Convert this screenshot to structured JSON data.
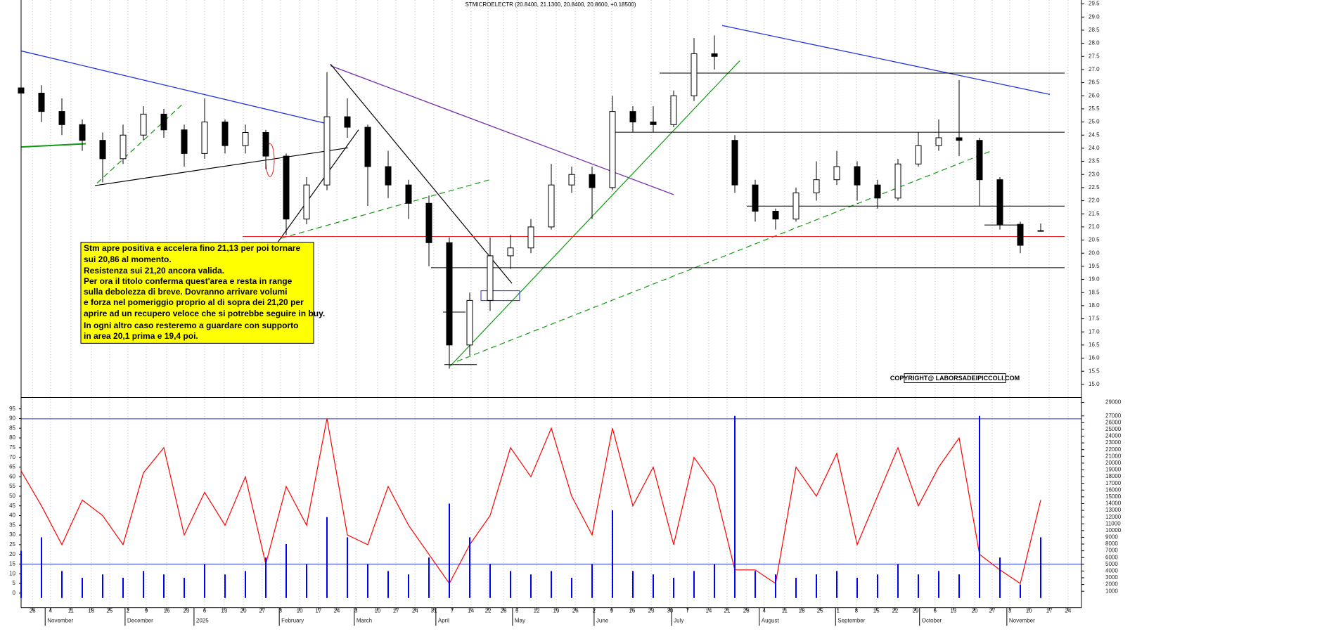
{
  "chart_data": [
    {
      "type": "candlestick",
      "title": "STMICROELECTR (20.8400, 21.1300, 20.8400, 20.8600, +0.18500)",
      "x": [
        0,
        5,
        10,
        15,
        20,
        25,
        30,
        35,
        40,
        45,
        50,
        55,
        60,
        65,
        70,
        75,
        80,
        85,
        90,
        95,
        100,
        105,
        110,
        115,
        120,
        125,
        130,
        135,
        140,
        145,
        150,
        155,
        160,
        165,
        170,
        175,
        180,
        185,
        190,
        195,
        200,
        205,
        210,
        215,
        220,
        225,
        230,
        235,
        240,
        245,
        250
      ],
      "open": [
        26.3,
        26.1,
        25.4,
        24.9,
        24.3,
        23.6,
        24.5,
        25.3,
        24.7,
        23.8,
        25.0,
        24.1,
        24.6,
        23.7,
        21.3,
        22.6,
        25.2,
        24.8,
        23.3,
        22.6,
        21.9,
        20.4,
        16.5,
        18.2,
        19.9,
        20.2,
        21.0,
        22.6,
        23.0,
        22.5,
        25.4,
        25.0,
        24.9,
        26.0,
        27.6,
        24.3,
        22.6,
        21.6,
        21.3,
        22.3,
        22.8,
        23.3,
        22.6,
        22.1,
        23.4,
        24.1,
        24.4,
        24.3,
        22.8,
        21.1,
        20.84
      ],
      "high": [
        26.7,
        26.4,
        25.9,
        25.1,
        24.6,
        24.9,
        25.6,
        25.5,
        24.9,
        25.9,
        25.1,
        24.9,
        24.7,
        23.8,
        22.9,
        26.9,
        25.9,
        24.9,
        23.9,
        22.8,
        22.2,
        20.6,
        18.5,
        20.6,
        20.7,
        21.3,
        23.4,
        23.3,
        23.3,
        26.0,
        25.6,
        25.6,
        26.2,
        28.2,
        28.3,
        24.5,
        22.8,
        21.7,
        22.5,
        23.5,
        23.9,
        23.5,
        22.8,
        23.6,
        24.6,
        25.1,
        26.6,
        24.4,
        22.9,
        21.2,
        21.13
      ],
      "low": [
        25.9,
        25.0,
        24.5,
        23.9,
        22.7,
        23.4,
        24.3,
        24.4,
        23.3,
        23.6,
        23.8,
        23.8,
        23.2,
        20.7,
        21.1,
        22.4,
        24.4,
        21.8,
        22.1,
        21.3,
        19.5,
        15.6,
        16.1,
        17.8,
        19.4,
        20.0,
        20.9,
        22.3,
        21.3,
        22.4,
        24.6,
        24.6,
        24.8,
        25.8,
        27.0,
        22.3,
        21.2,
        20.9,
        21.2,
        22.0,
        22.6,
        22.0,
        21.7,
        22.0,
        23.3,
        23.9,
        23.7,
        21.8,
        20.9,
        20.0,
        20.84
      ],
      "close": [
        26.1,
        25.4,
        24.9,
        24.3,
        23.6,
        24.5,
        25.3,
        24.7,
        23.8,
        25.0,
        24.1,
        24.6,
        23.7,
        21.3,
        22.6,
        25.2,
        24.8,
        23.3,
        22.6,
        21.9,
        20.4,
        16.5,
        18.2,
        19.9,
        20.2,
        21.0,
        22.6,
        23.0,
        22.5,
        25.4,
        25.0,
        24.9,
        26.0,
        27.6,
        27.5,
        22.6,
        21.6,
        21.3,
        22.3,
        22.8,
        23.3,
        22.6,
        22.1,
        23.4,
        24.1,
        24.4,
        24.3,
        22.8,
        21.1,
        20.3,
        20.86
      ],
      "xlim": [
        0,
        260
      ],
      "ylim": [
        14.5,
        29.65
      ],
      "yticks": [
        {
          "value": 15,
          "label": "15.0"
        },
        {
          "value": 15.5,
          "label": "15.5"
        },
        {
          "value": 16,
          "label": "16.0"
        },
        {
          "value": 16.5,
          "label": "16.5"
        },
        {
          "value": 17,
          "label": "17.0"
        },
        {
          "value": 17.5,
          "label": "17.5"
        },
        {
          "value": 18,
          "label": "18.0"
        },
        {
          "value": 18.5,
          "label": "18.5"
        },
        {
          "value": 19,
          "label": "19.0"
        },
        {
          "value": 19.5,
          "label": "19.5"
        },
        {
          "value": 20,
          "label": "20.0"
        },
        {
          "value": 20.5,
          "label": "20.5"
        },
        {
          "value": 21,
          "label": "21.0"
        },
        {
          "value": 21.5,
          "label": "21.5"
        },
        {
          "value": 22,
          "label": "22.0"
        },
        {
          "value": 22.5,
          "label": "22.5"
        },
        {
          "value": 23,
          "label": "23.0"
        },
        {
          "value": 23.5,
          "label": "23.5"
        },
        {
          "value": 24,
          "label": "24.0"
        },
        {
          "value": 24.5,
          "label": "24.5"
        },
        {
          "value": 25,
          "label": "25.0"
        },
        {
          "value": 25.5,
          "label": "25.5"
        },
        {
          "value": 26,
          "label": "26.0"
        },
        {
          "value": 26.5,
          "label": "26.5"
        },
        {
          "value": 27,
          "label": "27.0"
        },
        {
          "value": 27.5,
          "label": "27.5"
        },
        {
          "value": 28,
          "label": "28.0"
        },
        {
          "value": 28.5,
          "label": "28.5"
        },
        {
          "value": 29,
          "label": "29.0"
        },
        {
          "value": 29.5,
          "label": "29.5"
        }
      ],
      "annotation": [
        "Stm apre positiva e accelera fino 21,13 per poi tornare",
        "sui 20,86 al momento.",
        "Resistenza sui 21,20 ancora valida.",
        "Per ora il titolo conferma quest'area e resta in range",
        "sulla debolezza di breve. Dovranno arrivare volumi",
        "e forza nel pomeriggio proprio al di sopra dei 21,20 per",
        "aprire ad un recupero veloce che si potrebbe seguire in buy.",
        "In ogni altro caso resteremo a guardare con supporto",
        "in area 20,1 prima e 19,4 poi."
      ],
      "copyright": "COPYRIGHT@ LABORSADEIPICCOLI.COM"
    },
    {
      "type": "line",
      "x": [
        0,
        5,
        10,
        15,
        20,
        25,
        30,
        35,
        40,
        45,
        50,
        55,
        60,
        65,
        70,
        75,
        80,
        85,
        90,
        95,
        100,
        105,
        110,
        115,
        120,
        125,
        130,
        135,
        140,
        145,
        150,
        155,
        160,
        165,
        170,
        175,
        180,
        185,
        190,
        195,
        200,
        205,
        210,
        215,
        220,
        225,
        230,
        235,
        240,
        245,
        250
      ],
      "series": [
        {
          "color": "#ff0000",
          "values": [
            63,
            45,
            25,
            48,
            40,
            25,
            62,
            75,
            30,
            52,
            35,
            60,
            15,
            55,
            35,
            90,
            30,
            25,
            55,
            35,
            20,
            5,
            25,
            40,
            75,
            60,
            85,
            50,
            30,
            85,
            45,
            65,
            25,
            70,
            55,
            12,
            12,
            5,
            65,
            50,
            72,
            25,
            50,
            75,
            45,
            65,
            80,
            20,
            12,
            5,
            48
          ]
        },
        {
          "color": "#0000ff",
          "type": "bar",
          "axis": "y2",
          "values": [
            7000,
            9000,
            4000,
            3000,
            3500,
            3000,
            4000,
            3500,
            3000,
            5000,
            3500,
            4000,
            6000,
            8000,
            5000,
            12000,
            9000,
            5000,
            4000,
            3500,
            6000,
            14000,
            9000,
            5000,
            4000,
            3500,
            4000,
            3000,
            5000,
            13000,
            4000,
            3500,
            3000,
            4000,
            5000,
            27000,
            4000,
            3500,
            3000,
            3500,
            4000,
            3000,
            3500,
            5000,
            3500,
            4000,
            3500,
            27000,
            6000,
            2000,
            9000
          ]
        }
      ],
      "xlim": [
        0,
        260
      ],
      "ylim": [
        -7.5,
        100
      ],
      "yticks": [
        0,
        5,
        10,
        15,
        20,
        25,
        30,
        35,
        40,
        45,
        50,
        55,
        60,
        65,
        70,
        75,
        80,
        85,
        90,
        95
      ],
      "y2lim": [
        -1440,
        29490
      ],
      "y2ticks": [
        1000,
        2000,
        3000,
        4000,
        5000,
        6000,
        7000,
        8000,
        9000,
        10000,
        11000,
        12000,
        13000,
        14000,
        15000,
        16000,
        17000,
        18000,
        19000,
        20000,
        21000,
        22000,
        23000,
        24000,
        25000,
        26000,
        27000,
        29000
      ],
      "grid": true,
      "xticks": [
        {
          "value": 2.8,
          "label": "28"
        },
        {
          "value": 7.2,
          "label": "4"
        },
        {
          "value": 12.2,
          "label": "11"
        },
        {
          "value": 17.2,
          "label": "18"
        },
        {
          "value": 21.7,
          "label": "25"
        },
        {
          "value": 26.2,
          "label": "2"
        },
        {
          "value": 30.7,
          "label": "9"
        },
        {
          "value": 35.7,
          "label": "16"
        },
        {
          "value": 40.5,
          "label": "23"
        },
        {
          "value": 45,
          "label": "6"
        },
        {
          "value": 49.8,
          "label": "13"
        },
        {
          "value": 54.5,
          "label": "20"
        },
        {
          "value": 59.1,
          "label": "27"
        },
        {
          "value": 63.6,
          "label": "3"
        },
        {
          "value": 68.3,
          "label": "10"
        },
        {
          "value": 72.9,
          "label": "17"
        },
        {
          "value": 77.4,
          "label": "24"
        },
        {
          "value": 82.1,
          "label": "3"
        },
        {
          "value": 87.4,
          "label": "10"
        },
        {
          "value": 91.9,
          "label": "17"
        },
        {
          "value": 96.6,
          "label": "24"
        },
        {
          "value": 101.2,
          "label": "31"
        },
        {
          "value": 105.7,
          "label": "7"
        },
        {
          "value": 110.3,
          "label": "14"
        },
        {
          "value": 114.5,
          "label": "22"
        },
        {
          "value": 118.3,
          "label": "28"
        },
        {
          "value": 121.6,
          "label": "5"
        },
        {
          "value": 126.4,
          "label": "12"
        },
        {
          "value": 131.2,
          "label": "19"
        },
        {
          "value": 135.9,
          "label": "26"
        },
        {
          "value": 140.5,
          "label": "2"
        },
        {
          "value": 144.8,
          "label": "9"
        },
        {
          "value": 149.8,
          "label": "16"
        },
        {
          "value": 154.5,
          "label": "23"
        },
        {
          "value": 159.1,
          "label": "30"
        },
        {
          "value": 163.4,
          "label": "7"
        },
        {
          "value": 168.6,
          "label": "14"
        },
        {
          "value": 173.1,
          "label": "21"
        },
        {
          "value": 177.8,
          "label": "28"
        },
        {
          "value": 182.2,
          "label": "4"
        },
        {
          "value": 187.2,
          "label": "11"
        },
        {
          "value": 191.4,
          "label": "18"
        },
        {
          "value": 195.9,
          "label": "25"
        },
        {
          "value": 200.3,
          "label": "1"
        },
        {
          "value": 204.8,
          "label": "8"
        },
        {
          "value": 209.7,
          "label": "15"
        },
        {
          "value": 214.3,
          "label": "22"
        },
        {
          "value": 219.3,
          "label": "29"
        },
        {
          "value": 224.1,
          "label": "6"
        },
        {
          "value": 228.6,
          "label": "13"
        },
        {
          "value": 233.8,
          "label": "20"
        },
        {
          "value": 238.1,
          "label": "27"
        },
        {
          "value": 242.4,
          "label": "3"
        },
        {
          "value": 247.1,
          "label": "10"
        },
        {
          "value": 252.1,
          "label": "17"
        },
        {
          "value": 256.7,
          "label": "24"
        }
      ],
      "months": [
        {
          "value": 5.9,
          "label": "November"
        },
        {
          "value": 25.5,
          "label": "December"
        },
        {
          "value": 42.4,
          "label": "2025"
        },
        {
          "value": 63.3,
          "label": "February"
        },
        {
          "value": 81.7,
          "label": "March"
        },
        {
          "value": 101.7,
          "label": "April"
        },
        {
          "value": 120.5,
          "label": "May"
        },
        {
          "value": 140.5,
          "label": "June"
        },
        {
          "value": 159.5,
          "label": "July"
        },
        {
          "value": 181,
          "label": "August"
        },
        {
          "value": 199.7,
          "label": "September"
        },
        {
          "value": 220.3,
          "label": "October"
        },
        {
          "value": 241.7,
          "label": "November"
        }
      ]
    }
  ]
}
